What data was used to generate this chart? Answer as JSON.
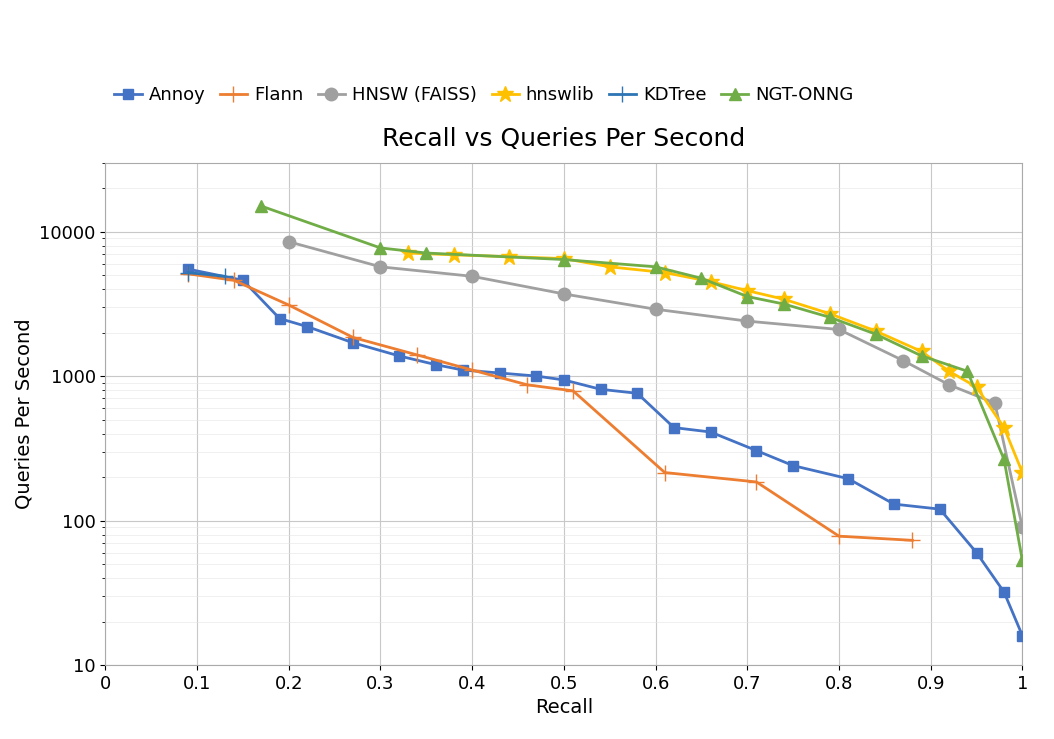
{
  "title": "Recall vs Queries Per Second",
  "xlabel": "Recall",
  "ylabel": "Queries Per Second",
  "xlim": [
    0,
    1.0
  ],
  "ylim": [
    10,
    30000
  ],
  "series": [
    {
      "name": "Annoy",
      "color": "#4472C4",
      "marker": "s",
      "markersize": 7,
      "linewidth": 2,
      "x": [
        0.09,
        0.15,
        0.19,
        0.22,
        0.27,
        0.32,
        0.36,
        0.39,
        0.43,
        0.47,
        0.5,
        0.54,
        0.58,
        0.62,
        0.66,
        0.71,
        0.75,
        0.81,
        0.86,
        0.91,
        0.95,
        0.98,
        1.0
      ],
      "y": [
        5500,
        4600,
        2500,
        2200,
        1700,
        1380,
        1200,
        1100,
        1050,
        1000,
        940,
        810,
        760,
        440,
        410,
        305,
        240,
        195,
        130,
        120,
        60,
        32,
        16
      ]
    },
    {
      "name": "Flann",
      "color": "#ED7D31",
      "marker": "P",
      "markersize": 7,
      "linewidth": 2,
      "x": [
        0.09,
        0.14,
        0.2,
        0.27,
        0.34,
        0.4,
        0.46,
        0.51,
        0.61,
        0.71,
        0.8,
        0.88
      ],
      "y": [
        5100,
        4600,
        3100,
        1850,
        1400,
        1100,
        870,
        790,
        215,
        185,
        78,
        73
      ]
    },
    {
      "name": "HNSW (FAISS)",
      "color": "#A0A0A0",
      "marker": "o",
      "markersize": 9,
      "linewidth": 2,
      "x": [
        0.2,
        0.3,
        0.4,
        0.5,
        0.6,
        0.7,
        0.8,
        0.87,
        0.92,
        0.97,
        1.0
      ],
      "y": [
        8500,
        5700,
        4900,
        3700,
        2900,
        2400,
        2100,
        1280,
        870,
        650,
        90
      ]
    },
    {
      "name": "hnswlib",
      "color": "#FFC000",
      "marker": "*",
      "markersize": 12,
      "linewidth": 2,
      "x": [
        0.33,
        0.38,
        0.44,
        0.5,
        0.55,
        0.61,
        0.66,
        0.7,
        0.74,
        0.79,
        0.84,
        0.89,
        0.92,
        0.95,
        0.98,
        1.0
      ],
      "y": [
        7100,
        6900,
        6700,
        6500,
        5700,
        5200,
        4500,
        3900,
        3400,
        2700,
        2050,
        1480,
        1080,
        840,
        440,
        215
      ]
    },
    {
      "name": "KDTree",
      "color": "#2E75B6",
      "marker": "D",
      "markersize": 7,
      "linewidth": 2,
      "x": [
        0.09,
        0.13
      ],
      "y": [
        5200,
        4900
      ]
    },
    {
      "name": "NGT-ONNG",
      "color": "#70AD47",
      "marker": "^",
      "markersize": 9,
      "linewidth": 2,
      "x": [
        0.17,
        0.3,
        0.35,
        0.5,
        0.6,
        0.65,
        0.7,
        0.74,
        0.79,
        0.84,
        0.89,
        0.94,
        0.98,
        1.0
      ],
      "y": [
        15000,
        7700,
        7100,
        6400,
        5700,
        4750,
        3550,
        3150,
        2550,
        1950,
        1380,
        1080,
        265,
        53
      ]
    }
  ],
  "background_color": "#FFFFFF",
  "grid_color": "#C8C8C8",
  "title_fontsize": 18,
  "label_fontsize": 14,
  "tick_fontsize": 13,
  "legend_fontsize": 13
}
